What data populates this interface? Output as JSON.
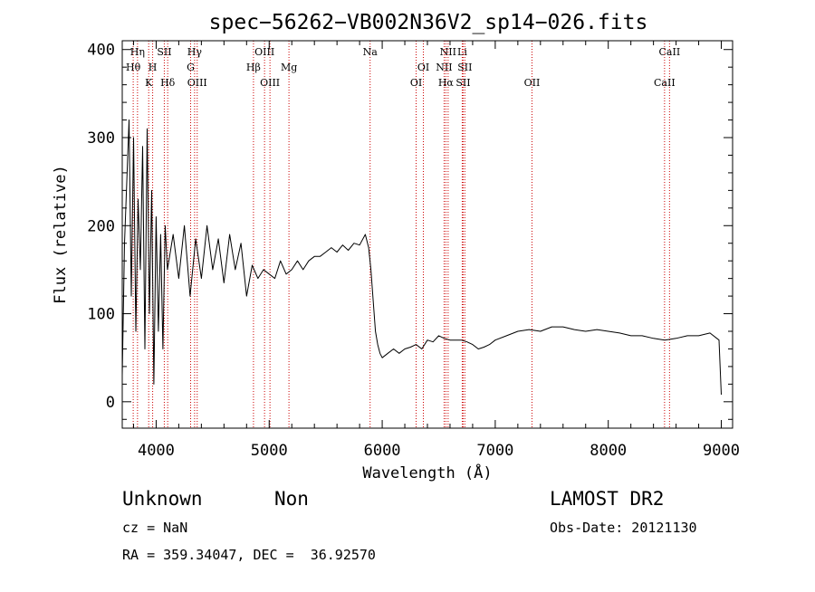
{
  "chart_data": {
    "type": "line",
    "title": "spec−56262−VB002N36V2_sp14−026.fits",
    "xlabel": "Wavelength (Å)",
    "ylabel": "Flux (relative)",
    "xlim": [
      3700,
      9100
    ],
    "ylim": [
      -30,
      410
    ],
    "xticks": [
      4000,
      5000,
      6000,
      7000,
      8000,
      9000
    ],
    "yticks": [
      0,
      100,
      200,
      300,
      400
    ],
    "grid": false,
    "series": [
      {
        "color": "#000000",
        "x": [
          3700,
          3720,
          3740,
          3760,
          3780,
          3800,
          3820,
          3840,
          3860,
          3880,
          3900,
          3920,
          3940,
          3960,
          3980,
          4000,
          4020,
          4040,
          4060,
          4080,
          4100,
          4150,
          4200,
          4250,
          4300,
          4350,
          4400,
          4450,
          4500,
          4550,
          4600,
          4650,
          4700,
          4750,
          4800,
          4850,
          4900,
          4950,
          5000,
          5050,
          5100,
          5150,
          5200,
          5250,
          5300,
          5350,
          5400,
          5450,
          5500,
          5550,
          5600,
          5650,
          5700,
          5750,
          5800,
          5850,
          5880,
          5900,
          5920,
          5940,
          5960,
          5980,
          6000,
          6050,
          6100,
          6150,
          6200,
          6250,
          6300,
          6350,
          6400,
          6450,
          6500,
          6550,
          6600,
          6650,
          6700,
          6750,
          6800,
          6850,
          6900,
          6950,
          7000,
          7100,
          7200,
          7300,
          7400,
          7500,
          7600,
          7700,
          7800,
          7900,
          8000,
          8100,
          8200,
          8300,
          8400,
          8500,
          8600,
          8700,
          8800,
          8900,
          8980,
          9000
        ],
        "y": [
          30,
          180,
          250,
          320,
          120,
          300,
          80,
          230,
          150,
          290,
          60,
          310,
          100,
          240,
          20,
          210,
          80,
          190,
          60,
          200,
          150,
          190,
          140,
          200,
          120,
          185,
          140,
          200,
          150,
          185,
          135,
          190,
          150,
          180,
          120,
          155,
          140,
          150,
          145,
          140,
          160,
          145,
          150,
          160,
          150,
          160,
          165,
          165,
          170,
          175,
          170,
          178,
          172,
          180,
          178,
          190,
          175,
          150,
          115,
          80,
          65,
          55,
          50,
          55,
          60,
          55,
          60,
          62,
          65,
          60,
          70,
          68,
          75,
          72,
          70,
          70,
          70,
          68,
          65,
          60,
          62,
          65,
          70,
          75,
          80,
          82,
          80,
          85,
          85,
          82,
          80,
          82,
          80,
          78,
          75,
          75,
          72,
          70,
          72,
          75,
          75,
          78,
          70,
          8
        ]
      }
    ],
    "line_markers": [
      {
        "label": "Hη",
        "wavelength": 3835,
        "row": 1,
        "color": "#cc0000"
      },
      {
        "label": "Hθ",
        "wavelength": 3797,
        "row": 2,
        "color": "#cc0000"
      },
      {
        "label": "K",
        "wavelength": 3934,
        "row": 3,
        "color": "#cc0000"
      },
      {
        "label": "SII",
        "wavelength": 4072,
        "row": 1,
        "color": "#cc0000"
      },
      {
        "label": "H",
        "wavelength": 3969,
        "row": 2,
        "color": "#cc0000"
      },
      {
        "label": "Hδ",
        "wavelength": 4102,
        "row": 3,
        "color": "#cc0000"
      },
      {
        "label": "Hγ",
        "wavelength": 4340,
        "row": 1,
        "color": "#cc0000"
      },
      {
        "label": "G",
        "wavelength": 4305,
        "row": 2,
        "color": "#cc0000"
      },
      {
        "label": "OIII",
        "wavelength": 4363,
        "row": 3,
        "color": "#cc0000"
      },
      {
        "label": "OIII",
        "wavelength": 4959,
        "row": 1,
        "color": "#cc0000"
      },
      {
        "label": "Hβ",
        "wavelength": 4861,
        "row": 2,
        "color": "#cc0000"
      },
      {
        "label": "Mg",
        "wavelength": 5175,
        "row": 2,
        "color": "#cc0000"
      },
      {
        "label": "OIII",
        "wavelength": 5007,
        "row": 3,
        "color": "#cc0000"
      },
      {
        "label": "Na",
        "wavelength": 5893,
        "row": 1,
        "color": "#cc0000"
      },
      {
        "label": "OI",
        "wavelength": 6364,
        "row": 2,
        "color": "#cc0000"
      },
      {
        "label": "OI",
        "wavelength": 6300,
        "row": 3,
        "color": "#cc0000"
      },
      {
        "label": "NII",
        "wavelength": 6583,
        "row": 1,
        "color": "#cc0000"
      },
      {
        "label": "Li",
        "wavelength": 6708,
        "row": 1,
        "color": "#cc0000"
      },
      {
        "label": "NII",
        "wavelength": 6548,
        "row": 2,
        "color": "#cc0000"
      },
      {
        "label": "SII",
        "wavelength": 6731,
        "row": 2,
        "color": "#cc0000"
      },
      {
        "label": "Hα",
        "wavelength": 6563,
        "row": 3,
        "color": "#cc0000"
      },
      {
        "label": "SII",
        "wavelength": 6716,
        "row": 3,
        "color": "#cc0000"
      },
      {
        "label": "OII",
        "wavelength": 7325,
        "row": 3,
        "color": "#cc0000"
      },
      {
        "label": "CaII",
        "wavelength": 8542,
        "row": 1,
        "color": "#cc0000"
      },
      {
        "label": "CaII",
        "wavelength": 8498,
        "row": 3,
        "color": "#cc0000"
      }
    ]
  },
  "info": {
    "class": "Unknown",
    "subclass": "Non",
    "survey": "LAMOST DR2",
    "cz": "cz = NaN",
    "obs_date": "Obs-Date: 20121130",
    "coords": "RA = 359.34047, DEC =  36.92570"
  }
}
